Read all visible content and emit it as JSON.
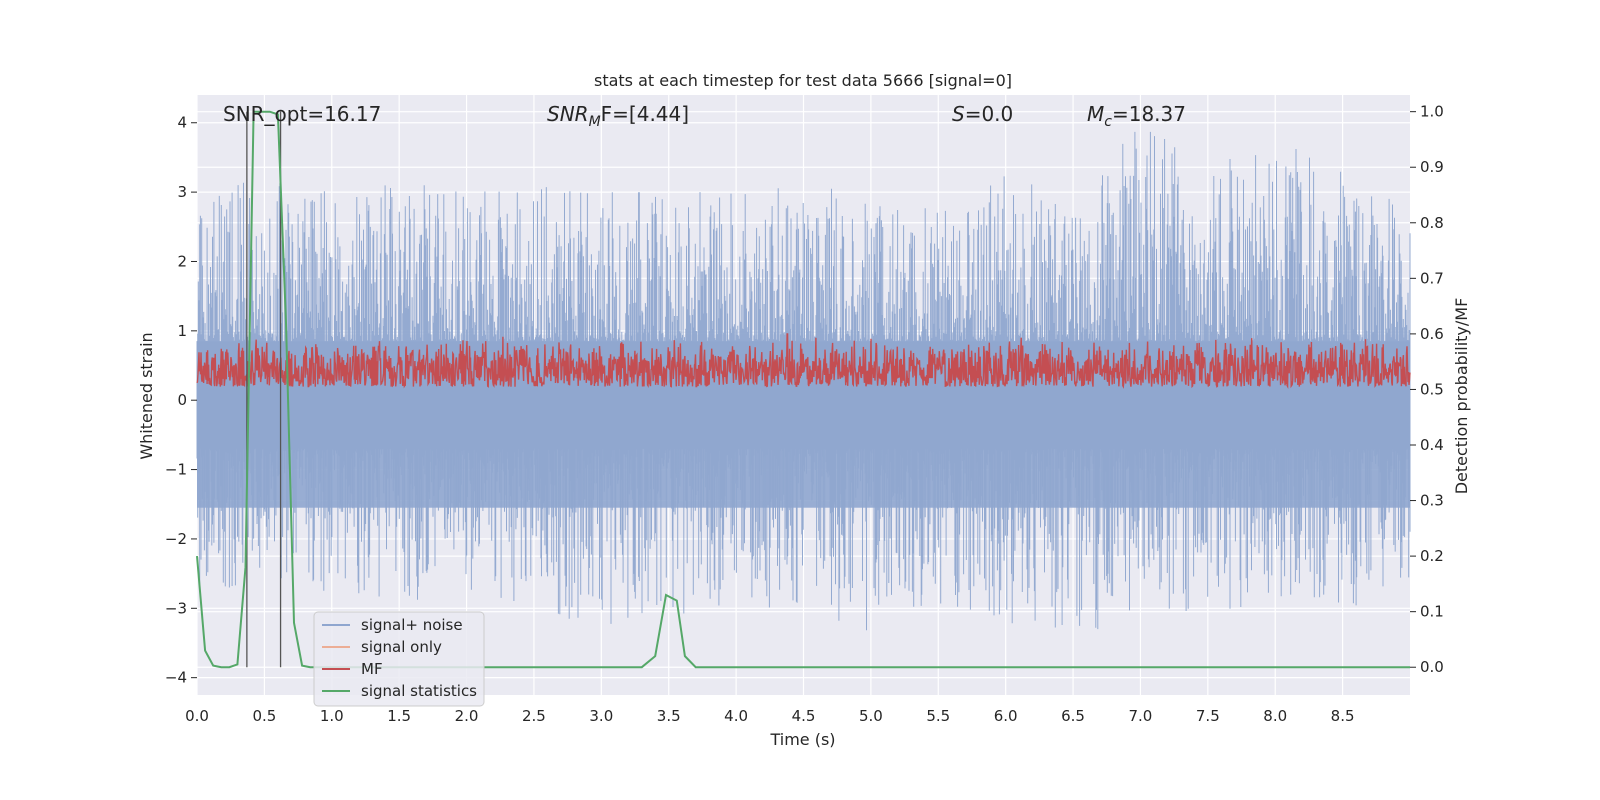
{
  "chart_data": {
    "type": "line",
    "title": "stats at each timestep for test data 5666 [signal=0]",
    "xlabel": "Time (s)",
    "ylabel_left": "Whitened strain",
    "ylabel_right": "Detection probability/MF",
    "xlim": [
      0.0,
      9.0
    ],
    "ylim_left": [
      -4.25,
      4.4
    ],
    "ylim_right": [
      -0.05,
      1.03
    ],
    "x_ticks": [
      "0.0",
      "0.5",
      "1.0",
      "1.5",
      "2.0",
      "2.5",
      "3.0",
      "3.5",
      "4.0",
      "4.5",
      "5.0",
      "5.5",
      "6.0",
      "6.5",
      "7.0",
      "7.5",
      "8.0",
      "8.5"
    ],
    "y_ticks_left": [
      "−4",
      "−3",
      "−2",
      "−1",
      "0",
      "1",
      "2",
      "3",
      "4"
    ],
    "y_ticks_right": [
      "0.0",
      "0.1",
      "0.2",
      "0.3",
      "0.4",
      "0.5",
      "0.6",
      "0.7",
      "0.8",
      "0.9",
      "1.0"
    ],
    "grid": true,
    "background": "#eaeaf2",
    "annotations": {
      "snr_opt": "SNR_opt=16.17",
      "snr_mf_name": "SNR",
      "snr_mf_sub": "M",
      "snr_mf_tail": "F=[4.44]",
      "s_name": "S",
      "s_value": "=0.0",
      "mc_name": "M",
      "mc_sub": "c",
      "mc_value": "=18.37"
    },
    "legend": {
      "position": "lower left",
      "entries": [
        {
          "label": "signal+ noise",
          "color": "#8fa6cf"
        },
        {
          "label": "signal only",
          "color": "#ecad95"
        },
        {
          "label": "MF",
          "color": "#c44e52"
        },
        {
          "label": "signal statistics",
          "color": "#55a868"
        }
      ]
    },
    "series": [
      {
        "name": "signal+ noise",
        "axis": "left",
        "color": "#8fa6cf",
        "description": "whitened noise samples spanning about −3.5 to 4.0",
        "envelope": {
          "x": [
            0.0,
            0.5,
            1.0,
            1.5,
            2.0,
            2.5,
            3.0,
            3.5,
            4.0,
            4.5,
            5.0,
            5.5,
            6.0,
            6.5,
            7.0,
            7.5,
            8.0,
            8.5,
            9.0
          ],
          "upper": [
            3.0,
            3.2,
            3.0,
            3.2,
            3.0,
            3.1,
            3.0,
            3.0,
            3.0,
            3.1,
            3.0,
            2.8,
            3.3,
            3.0,
            4.0,
            3.4,
            3.8,
            3.3,
            2.8
          ],
          "lower": [
            -2.8,
            -2.6,
            -2.8,
            -3.0,
            -2.8,
            -3.0,
            -3.3,
            -3.3,
            -3.0,
            -3.0,
            -3.4,
            -3.0,
            -3.2,
            -3.5,
            -3.0,
            -3.2,
            -2.9,
            -3.0,
            -2.8
          ]
        }
      },
      {
        "name": "signal only",
        "axis": "left",
        "color": "#ecad95",
        "x": [],
        "y": []
      },
      {
        "name": "MF",
        "axis": "right",
        "color": "#c44e52",
        "description": "matched filter output fluctuating between about 0.50 and 0.62",
        "range": [
          0.5,
          0.62
        ],
        "peak": {
          "x": 4.38,
          "y": 0.6
        }
      },
      {
        "name": "signal statistics",
        "axis": "right",
        "color": "#55a868",
        "x": [
          0.0,
          0.06,
          0.12,
          0.18,
          0.24,
          0.3,
          0.36,
          0.42,
          0.48,
          0.54,
          0.6,
          0.66,
          0.72,
          0.78,
          0.84,
          0.9,
          3.3,
          3.4,
          3.48,
          3.56,
          3.62,
          3.7,
          3.8,
          9.0
        ],
        "y": [
          0.2,
          0.03,
          0.003,
          0.0,
          0.0,
          0.005,
          0.18,
          1.0,
          1.0,
          1.0,
          0.995,
          0.62,
          0.08,
          0.003,
          0.0,
          0.0,
          0.0,
          0.02,
          0.13,
          0.12,
          0.02,
          0.0,
          0.0,
          0.0
        ]
      }
    ],
    "markers": {
      "vertical_lines_x": [
        0.37,
        0.62
      ]
    }
  }
}
